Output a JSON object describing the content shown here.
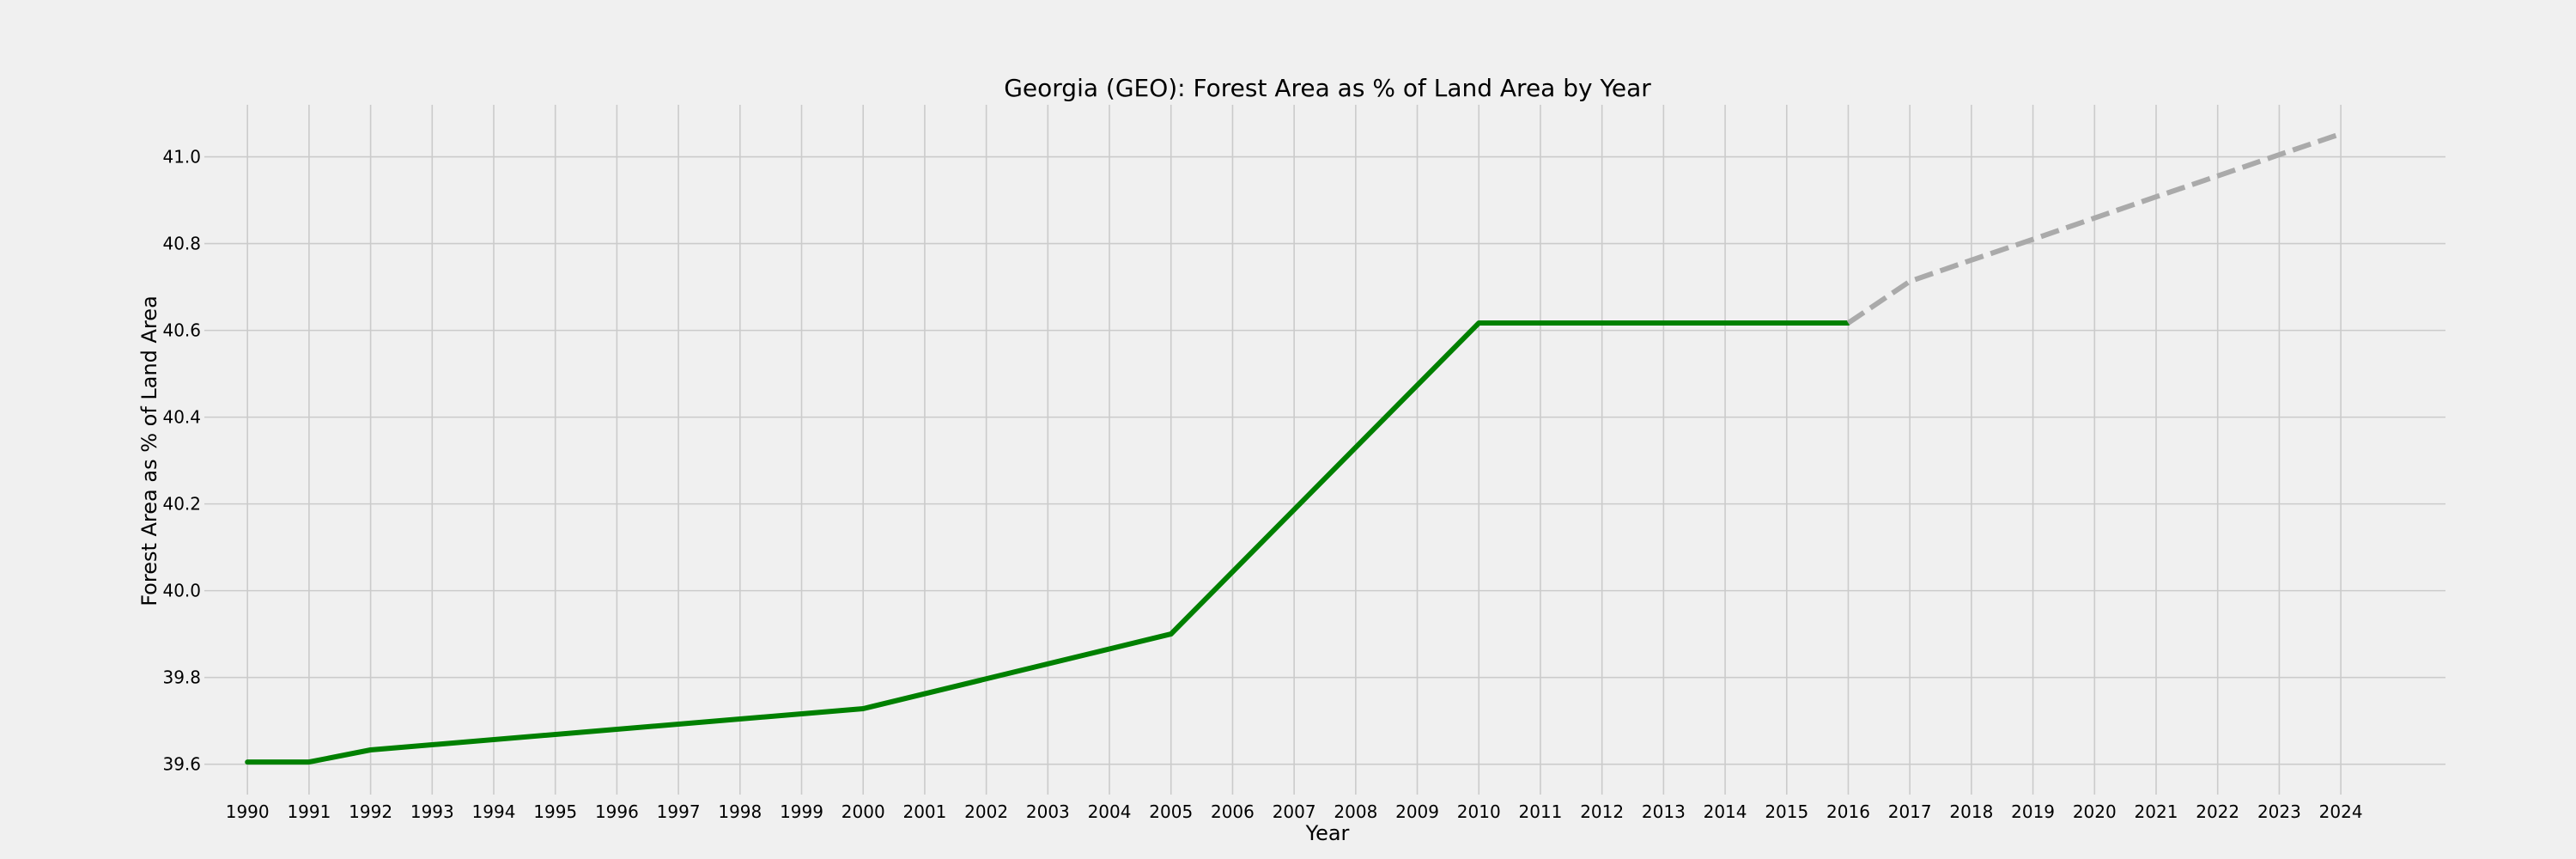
{
  "chart_data": {
    "type": "line",
    "title": "Georgia (GEO): Forest Area as % of Land Area by Year",
    "xlabel": "Year",
    "ylabel": "Forest Area as % of Land Area",
    "x": [
      1990,
      1991,
      1992,
      1993,
      1994,
      1995,
      1996,
      1997,
      1998,
      1999,
      2000,
      2001,
      2002,
      2003,
      2004,
      2005,
      2006,
      2007,
      2008,
      2009,
      2010,
      2011,
      2012,
      2013,
      2014,
      2015,
      2016,
      2017,
      2018,
      2019,
      2020,
      2021,
      2022,
      2023,
      2024
    ],
    "xlim": [
      1989.3,
      2025.7
    ],
    "ylim": [
      39.53,
      41.12
    ],
    "yticks": [
      39.6,
      39.8,
      40.0,
      40.2,
      40.4,
      40.6,
      40.8,
      41.0
    ],
    "ytick_labels": [
      "39.6",
      "39.8",
      "40.0",
      "40.2",
      "40.4",
      "40.6",
      "40.8",
      "41.0"
    ],
    "grid": true,
    "series": [
      {
        "style": "solid",
        "color": "#008000",
        "points": [
          [
            1990,
            39.605
          ],
          [
            1991,
            39.605
          ],
          [
            1992,
            39.633
          ],
          [
            2000,
            39.728
          ],
          [
            2005,
            39.9
          ],
          [
            2010,
            40.617
          ],
          [
            2016,
            40.617
          ]
        ]
      },
      {
        "style": "dashed",
        "color": "#aaaaaa",
        "points": [
          [
            2016,
            40.617
          ],
          [
            2017,
            40.713
          ],
          [
            2018,
            40.762
          ],
          [
            2019,
            40.81
          ],
          [
            2020,
            40.859
          ],
          [
            2021,
            40.908
          ],
          [
            2022,
            40.956
          ],
          [
            2023,
            41.005
          ],
          [
            2024,
            41.053
          ]
        ]
      }
    ]
  }
}
